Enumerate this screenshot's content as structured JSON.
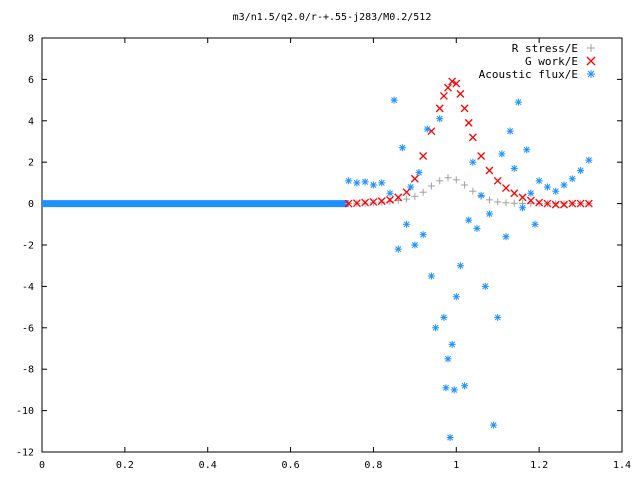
{
  "chart_data": {
    "type": "scatter",
    "title": "m3/n1.5/q2.0/r-+.55-j283/M0.2/512",
    "xlabel": "",
    "ylabel": "",
    "xlim": [
      0,
      1.4
    ],
    "ylim": [
      -12,
      8
    ],
    "grid": false,
    "legend_position": "top-right",
    "x_ticks": [
      "0",
      "0.2",
      "0.4",
      "0.6",
      "0.8",
      "1",
      "1.2",
      "1.4"
    ],
    "y_ticks": [
      "-12",
      "-10",
      "-8",
      "-6",
      "-4",
      "-2",
      "0",
      "2",
      "4",
      "6",
      "8"
    ],
    "series": [
      {
        "name": "R stress/E",
        "marker": "plus",
        "color": "#a0a0a0",
        "points": [
          [
            0.74,
            0.0
          ],
          [
            0.76,
            0.01
          ],
          [
            0.78,
            0.02
          ],
          [
            0.8,
            0.04
          ],
          [
            0.82,
            0.07
          ],
          [
            0.84,
            0.1
          ],
          [
            0.86,
            0.15
          ],
          [
            0.88,
            0.22
          ],
          [
            0.9,
            0.35
          ],
          [
            0.92,
            0.55
          ],
          [
            0.94,
            0.85
          ],
          [
            0.96,
            1.1
          ],
          [
            0.98,
            1.25
          ],
          [
            1.0,
            1.15
          ],
          [
            1.02,
            0.9
          ],
          [
            1.04,
            0.6
          ],
          [
            1.06,
            0.35
          ],
          [
            1.08,
            0.18
          ],
          [
            1.1,
            0.08
          ],
          [
            1.12,
            0.04
          ],
          [
            1.14,
            0.02
          ],
          [
            1.16,
            0.01
          ],
          [
            1.18,
            0.0
          ],
          [
            1.2,
            0.0
          ],
          [
            1.22,
            0.0
          ],
          [
            1.24,
            0.0
          ],
          [
            1.26,
            0.0
          ],
          [
            1.28,
            0.0
          ],
          [
            1.3,
            0.0
          ],
          [
            1.32,
            0.0
          ]
        ]
      },
      {
        "name": "G work/E",
        "marker": "cross",
        "color": "#ff0000",
        "points": [
          [
            0.74,
            0.0
          ],
          [
            0.76,
            0.02
          ],
          [
            0.78,
            0.05
          ],
          [
            0.8,
            0.08
          ],
          [
            0.82,
            0.12
          ],
          [
            0.84,
            0.18
          ],
          [
            0.86,
            0.3
          ],
          [
            0.88,
            0.55
          ],
          [
            0.9,
            1.2
          ],
          [
            0.92,
            2.3
          ],
          [
            0.94,
            3.5
          ],
          [
            0.96,
            4.6
          ],
          [
            0.97,
            5.2
          ],
          [
            0.98,
            5.6
          ],
          [
            0.99,
            5.9
          ],
          [
            1.0,
            5.8
          ],
          [
            1.01,
            5.3
          ],
          [
            1.02,
            4.6
          ],
          [
            1.03,
            3.9
          ],
          [
            1.04,
            3.2
          ],
          [
            1.06,
            2.3
          ],
          [
            1.08,
            1.6
          ],
          [
            1.1,
            1.1
          ],
          [
            1.12,
            0.75
          ],
          [
            1.14,
            0.5
          ],
          [
            1.16,
            0.3
          ],
          [
            1.18,
            0.15
          ],
          [
            1.2,
            0.05
          ],
          [
            1.22,
            0.0
          ],
          [
            1.24,
            -0.05
          ],
          [
            1.26,
            -0.05
          ],
          [
            1.28,
            0.0
          ],
          [
            1.3,
            0.0
          ],
          [
            1.32,
            0.0
          ]
        ]
      },
      {
        "name": "Acoustic flux/E",
        "marker": "star",
        "color": "#1e90ff",
        "points": [
          [
            0.74,
            1.1
          ],
          [
            0.76,
            1.0
          ],
          [
            0.78,
            1.05
          ],
          [
            0.8,
            0.9
          ],
          [
            0.82,
            1.0
          ],
          [
            0.84,
            0.5
          ],
          [
            0.85,
            5.0
          ],
          [
            0.86,
            -2.2
          ],
          [
            0.87,
            2.7
          ],
          [
            0.88,
            -1.0
          ],
          [
            0.89,
            0.8
          ],
          [
            0.9,
            -2.0
          ],
          [
            0.91,
            1.5
          ],
          [
            0.92,
            -1.5
          ],
          [
            0.93,
            3.6
          ],
          [
            0.94,
            -3.5
          ],
          [
            0.95,
            -6.0
          ],
          [
            0.96,
            4.1
          ],
          [
            0.97,
            -5.5
          ],
          [
            0.975,
            -8.9
          ],
          [
            0.98,
            -7.5
          ],
          [
            0.985,
            -11.3
          ],
          [
            0.99,
            -6.8
          ],
          [
            0.995,
            -9.0
          ],
          [
            1.0,
            -4.5
          ],
          [
            1.01,
            -3.0
          ],
          [
            1.02,
            -8.8
          ],
          [
            1.03,
            -0.8
          ],
          [
            1.04,
            2.0
          ],
          [
            1.05,
            -1.2
          ],
          [
            1.06,
            0.4
          ],
          [
            1.07,
            -4.0
          ],
          [
            1.08,
            -0.5
          ],
          [
            1.09,
            -10.7
          ],
          [
            1.1,
            -5.5
          ],
          [
            1.11,
            2.4
          ],
          [
            1.12,
            -1.6
          ],
          [
            1.13,
            3.5
          ],
          [
            1.14,
            1.7
          ],
          [
            1.15,
            4.9
          ],
          [
            1.16,
            -0.2
          ],
          [
            1.17,
            2.6
          ],
          [
            1.18,
            0.5
          ],
          [
            1.19,
            -1.0
          ],
          [
            1.2,
            1.1
          ],
          [
            1.22,
            0.8
          ],
          [
            1.24,
            0.6
          ],
          [
            1.26,
            0.9
          ],
          [
            1.28,
            1.2
          ],
          [
            1.3,
            1.6
          ],
          [
            1.32,
            2.1
          ]
        ]
      }
    ],
    "baseline_series": {
      "name": "Acoustic flux/E",
      "color": "#1e90ff",
      "x_from": 0,
      "x_to": 0.74,
      "y": 0
    }
  }
}
